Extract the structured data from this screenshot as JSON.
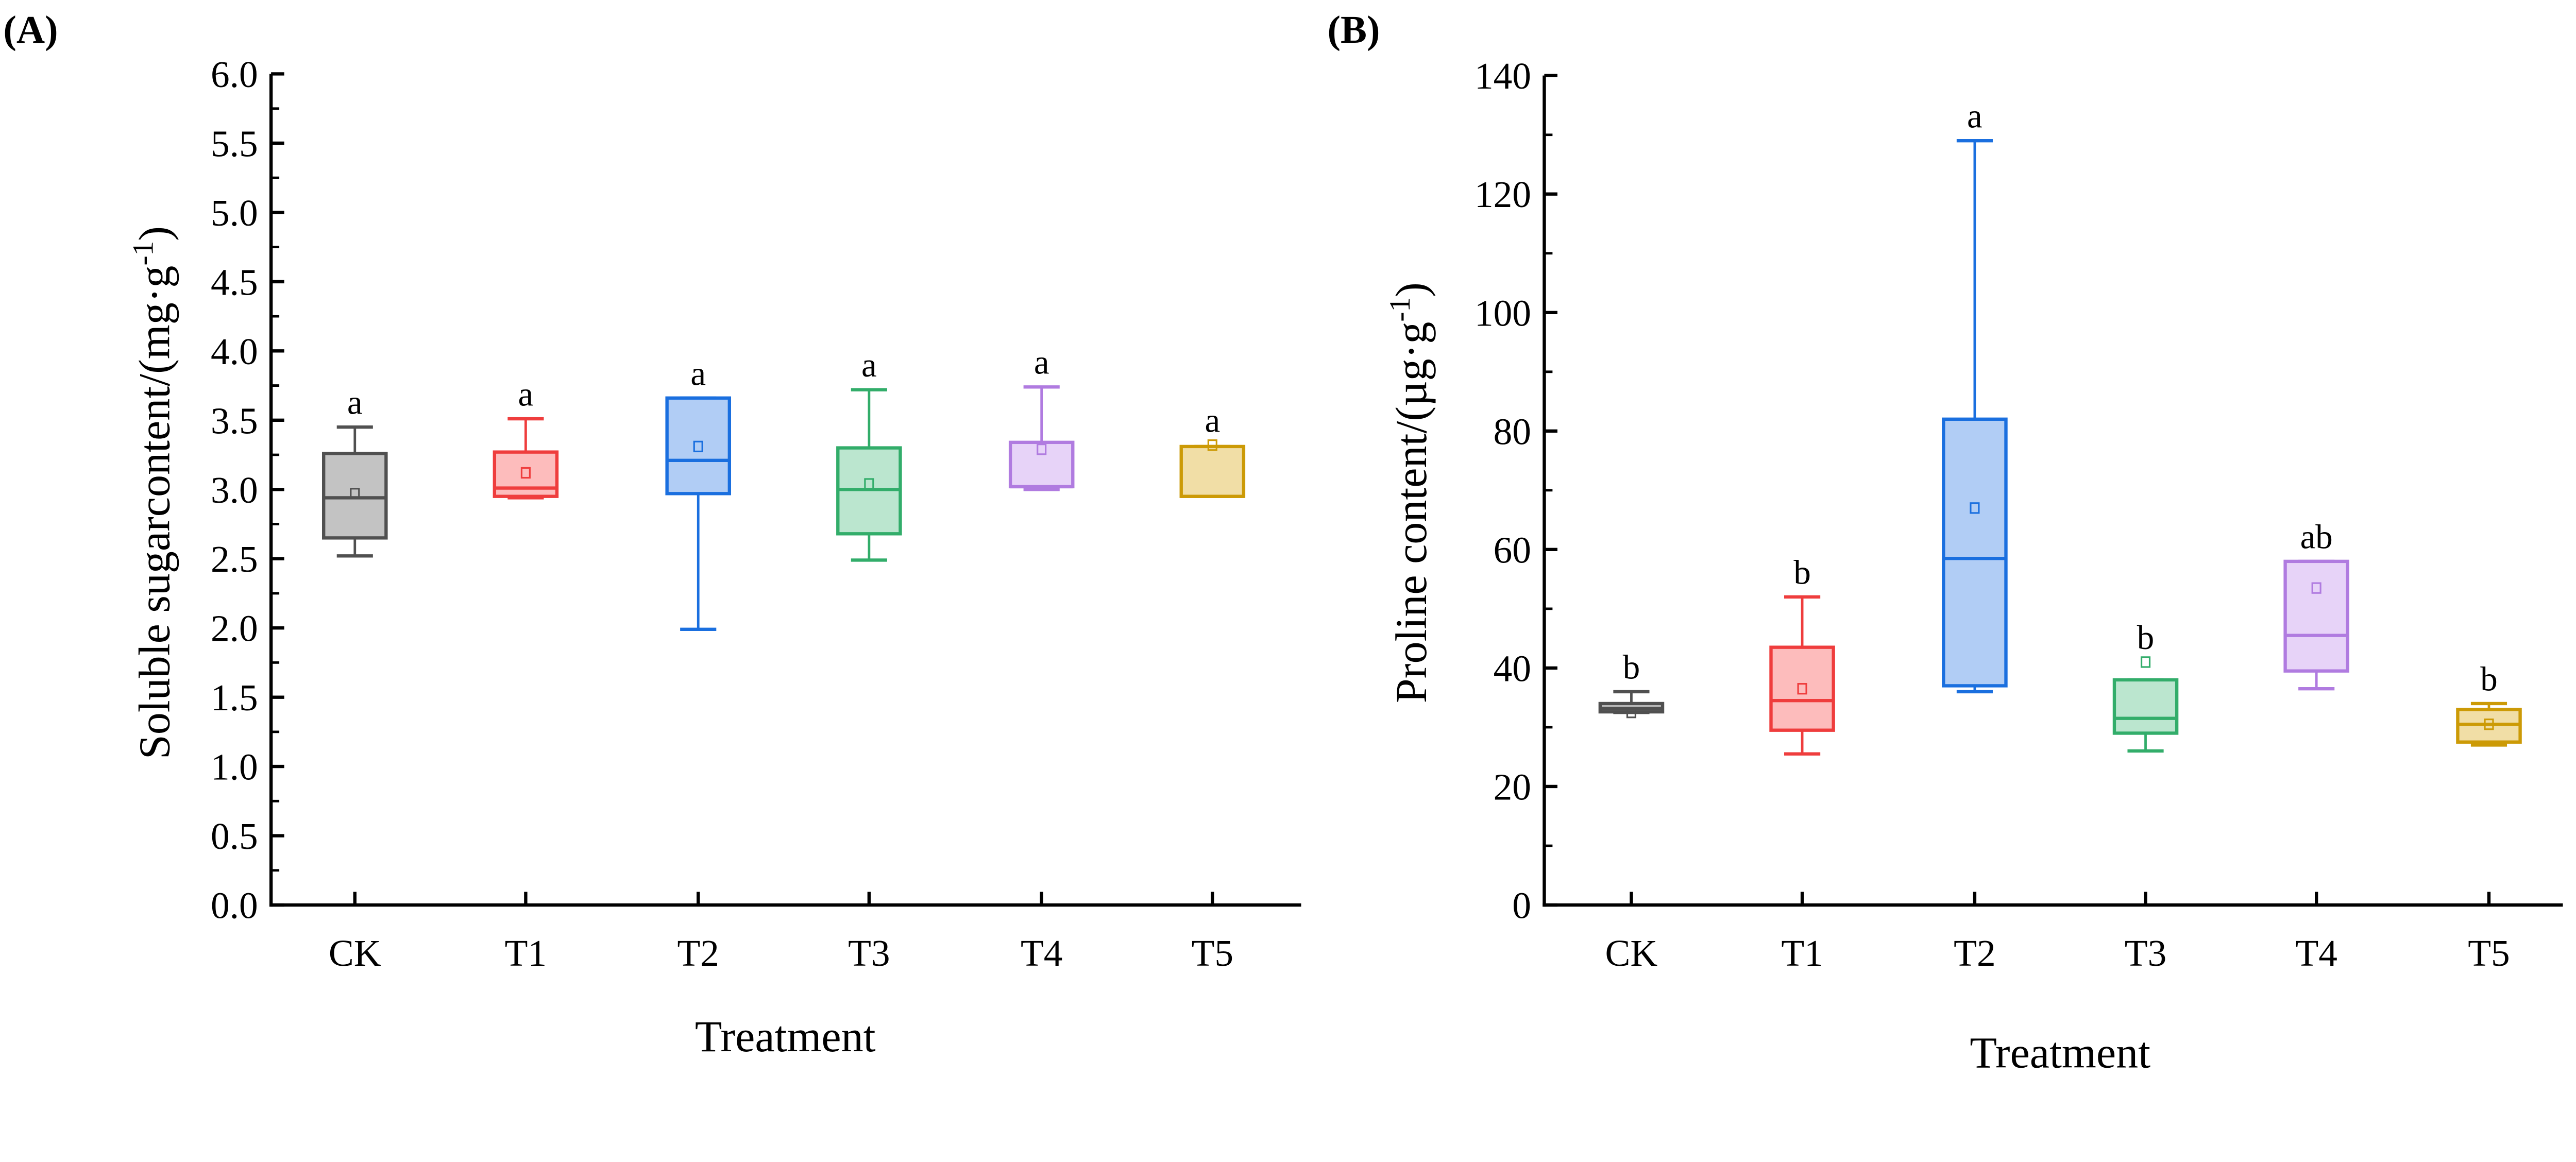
{
  "chart_data": [
    {
      "type": "box",
      "panel_label": "(A)",
      "xlabel": "Treatment",
      "ylabel": {
        "main": "Soluble sugarcontent/(mg·g",
        "sup": "-1",
        "end": ")"
      },
      "ylim": [
        0,
        6
      ],
      "yticks": [
        "0.0",
        "0.5",
        "1.0",
        "1.5",
        "2.0",
        "2.5",
        "3.0",
        "3.5",
        "4.0",
        "4.5",
        "5.0",
        "5.5",
        "6.0"
      ],
      "categories": [
        "CK",
        "T1",
        "T2",
        "T3",
        "T4",
        "T5"
      ],
      "boxes": [
        {
          "min": 2.52,
          "q1": 2.65,
          "median": 2.94,
          "q3": 3.26,
          "max": 3.45,
          "mean": 2.97,
          "sig": "a"
        },
        {
          "min": 2.94,
          "q1": 2.95,
          "median": 3.01,
          "q3": 3.27,
          "max": 3.51,
          "mean": 3.12,
          "sig": "a"
        },
        {
          "min": 1.99,
          "q1": 2.97,
          "median": 3.21,
          "q3": 3.66,
          "max": 3.66,
          "mean": 3.31,
          "sig": "a"
        },
        {
          "min": 2.49,
          "q1": 2.68,
          "median": 3.0,
          "q3": 3.3,
          "max": 3.72,
          "mean": 3.04,
          "sig": "a"
        },
        {
          "min": 3.0,
          "q1": 3.02,
          "median": 3.02,
          "q3": 3.34,
          "max": 3.74,
          "mean": 3.29,
          "sig": "a"
        },
        {
          "min": 2.95,
          "q1": 2.95,
          "median": 2.95,
          "q3": 3.31,
          "max": 3.31,
          "mean": 3.32,
          "sig": "a"
        }
      ]
    },
    {
      "type": "box",
      "panel_label": "(B)",
      "xlabel": "Treatment",
      "ylabel": {
        "main": "Proline content/(µg·g",
        "sup": "-1",
        "end": ")"
      },
      "ylim": [
        0,
        140
      ],
      "yticks": [
        "0",
        "20",
        "40",
        "60",
        "80",
        "100",
        "120",
        "140"
      ],
      "categories": [
        "CK",
        "T1",
        "T2",
        "T3",
        "T4",
        "T5"
      ],
      "boxes": [
        {
          "min": 32.5,
          "q1": 32.6,
          "median": 33.2,
          "q3": 34,
          "max": 36,
          "mean": 32.5,
          "sig": "b"
        },
        {
          "min": 25.5,
          "q1": 29.5,
          "median": 34.5,
          "q3": 43.5,
          "max": 52,
          "mean": 36.5,
          "sig": "b"
        },
        {
          "min": 36,
          "q1": 37,
          "median": 58.5,
          "q3": 82,
          "max": 129,
          "mean": 67,
          "sig": "a"
        },
        {
          "min": 26,
          "q1": 29,
          "median": 31.5,
          "q3": 38,
          "max": 38,
          "mean": 41,
          "sig": "b"
        },
        {
          "min": 36.5,
          "q1": 39.5,
          "median": 45.5,
          "q3": 58,
          "max": 58,
          "mean": 53.5,
          "sig": "ab"
        },
        {
          "min": 27,
          "q1": 27.5,
          "median": 30.5,
          "q3": 33,
          "max": 34,
          "mean": 30.5,
          "sig": "b"
        }
      ]
    }
  ],
  "colors": {
    "stroke": [
      "#505050",
      "#ef3d3d",
      "#1a6fdf",
      "#32ad6a",
      "#b07be0",
      "#cc9a06"
    ],
    "fill": [
      "#c3c3c3",
      "#fdbcbc",
      "#b1cdf5",
      "#bbe6cf",
      "#e7d3f8",
      "#f1dea6"
    ]
  }
}
